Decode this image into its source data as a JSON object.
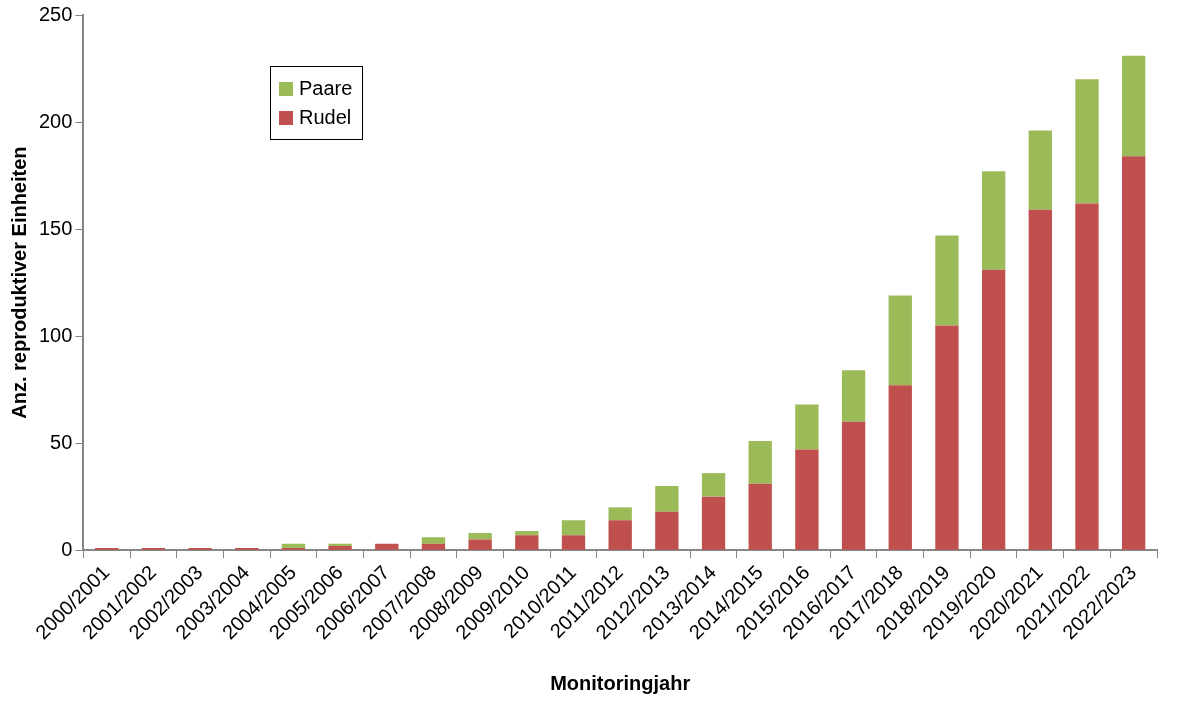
{
  "chart_data": {
    "type": "bar",
    "stacked": true,
    "xlabel": "Monitoringjahr",
    "ylabel": "Anz. reproduktiver Einheiten",
    "categories": [
      "2000/2001",
      "2001/2002",
      "2002/2003",
      "2003/2004",
      "2004/2005",
      "2005/2006",
      "2006/2007",
      "2007/2008",
      "2008/2009",
      "2009/2010",
      "2010/2011",
      "2011/2012",
      "2012/2013",
      "2013/2014",
      "2014/2015",
      "2015/2016",
      "2016/2017",
      "2017/2018",
      "2018/2019",
      "2019/2020",
      "2020/2021",
      "2021/2022",
      "2022/2023"
    ],
    "series": [
      {
        "name": "Rudel",
        "color": "#c0504d",
        "values": [
          1,
          1,
          1,
          1,
          1,
          2,
          3,
          3,
          5,
          7,
          7,
          14,
          18,
          25,
          31,
          47,
          60,
          77,
          105,
          131,
          159,
          162,
          184
        ]
      },
      {
        "name": "Paare",
        "color": "#9bbb59",
        "values": [
          0,
          0,
          0,
          0,
          2,
          1,
          0,
          3,
          3,
          2,
          7,
          6,
          12,
          11,
          20,
          21,
          24,
          42,
          42,
          46,
          37,
          58,
          47
        ]
      }
    ],
    "ylim": [
      0,
      250
    ],
    "yticks": [
      0,
      50,
      100,
      150,
      200,
      250
    ],
    "grid": false,
    "legend": "top left"
  }
}
